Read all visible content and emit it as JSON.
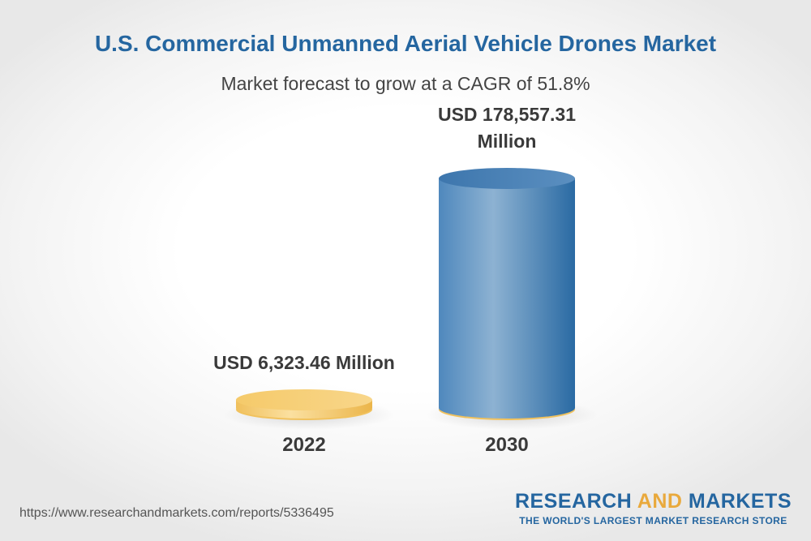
{
  "chart_data": {
    "type": "bar",
    "title": "U.S. Commercial Unmanned Aerial Vehicle Drones Market",
    "subtitle": "Market forecast to grow at a CAGR of 51.8%",
    "categories": [
      "2022",
      "2030"
    ],
    "values": [
      6323.46,
      178557.31
    ],
    "data_labels": [
      "USD 6,323.46 Million",
      "USD 178,557.31 Million"
    ],
    "bar_colors": [
      "#f4c96a",
      "#3c7ab0"
    ],
    "xlabel": "",
    "ylabel": "",
    "grid": false,
    "legend": "none"
  },
  "footer": {
    "source_url": "https://www.researchandmarkets.com/reports/5336495",
    "brand_part1": "RESEARCH ",
    "brand_part2": "AND",
    "brand_part3": " MARKETS",
    "brand_tagline": "THE WORLD'S LARGEST MARKET RESEARCH STORE"
  }
}
